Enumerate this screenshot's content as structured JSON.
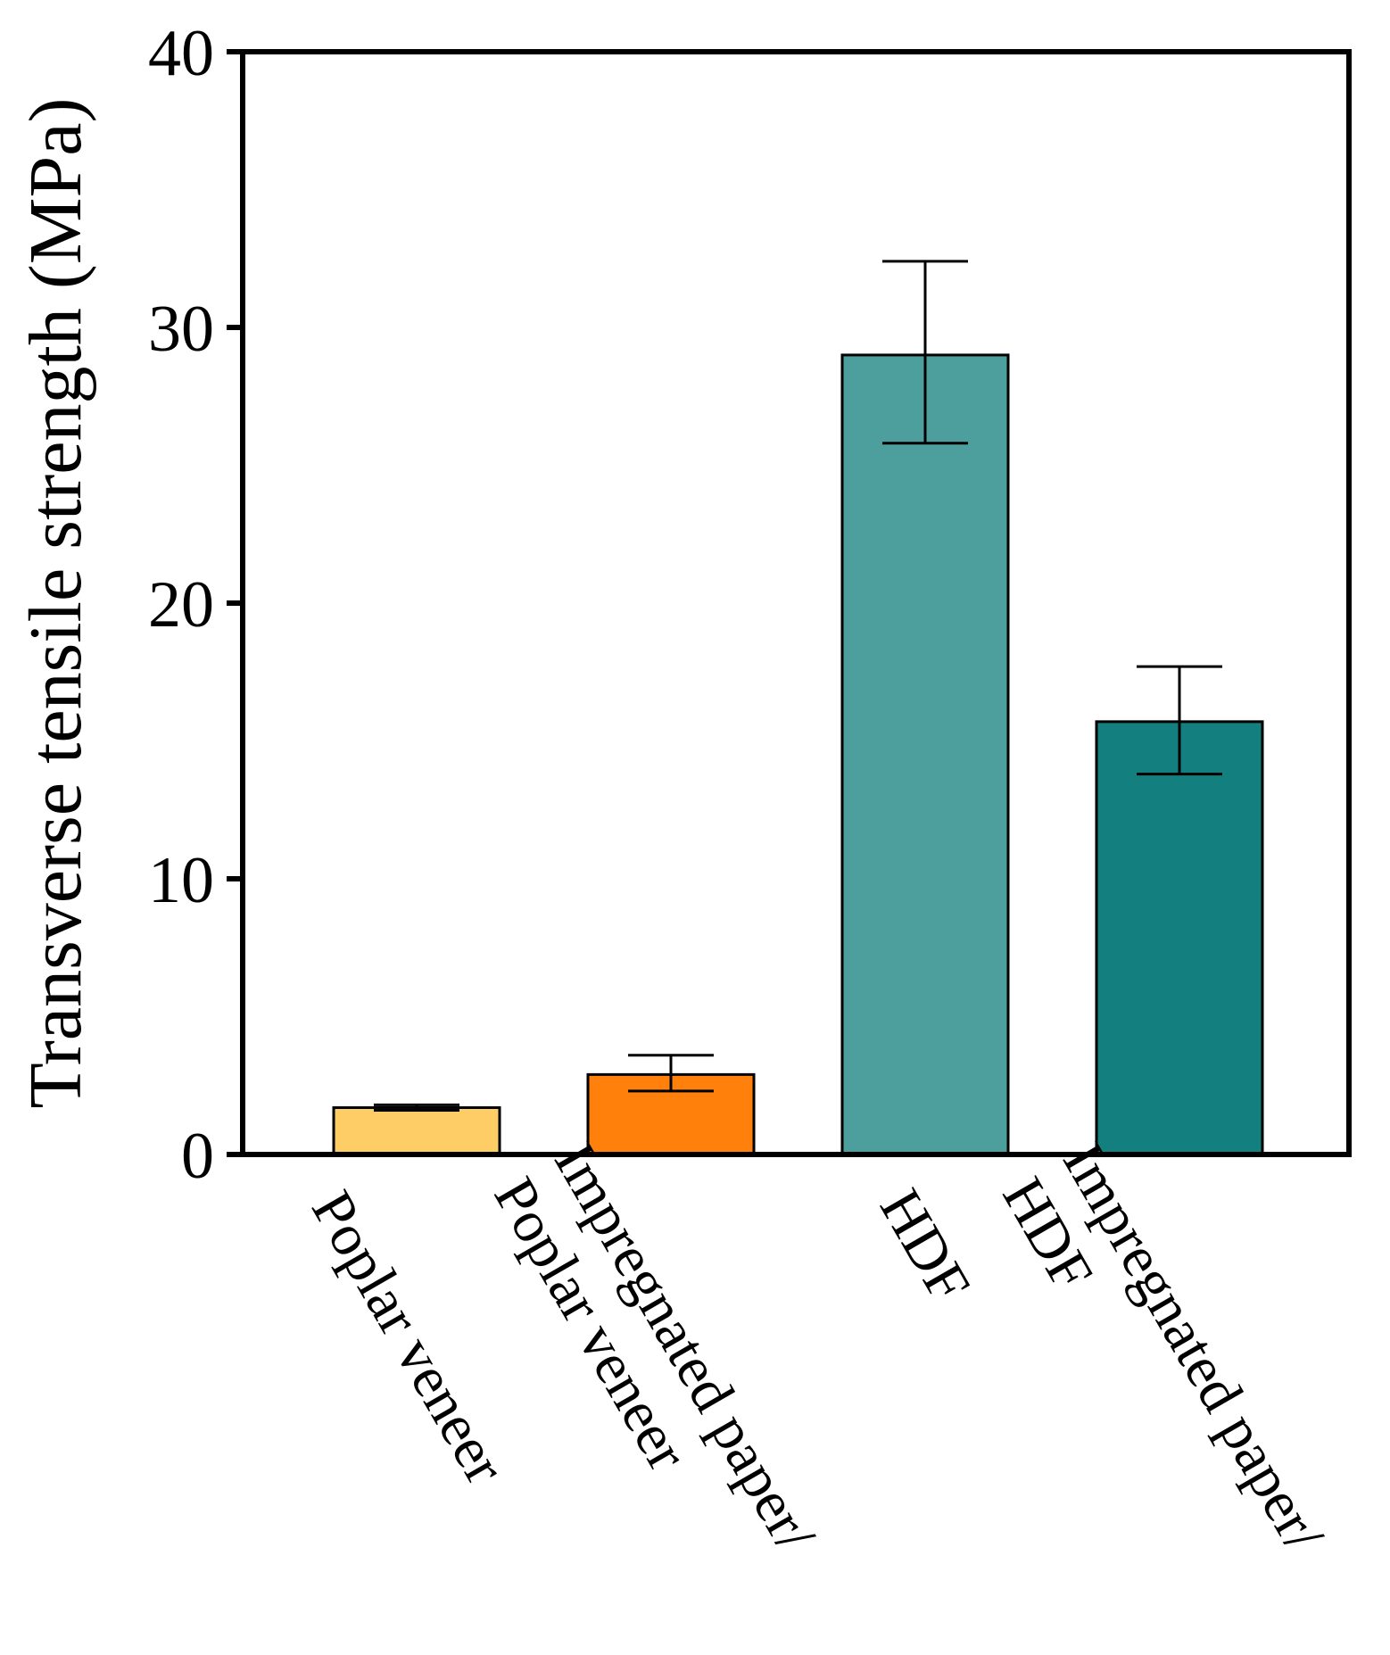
{
  "chart_data": {
    "type": "bar",
    "ylabel": "Transverse tensile strength (MPa)",
    "xlabel": "",
    "ylim": [
      0,
      40
    ],
    "yticks": [
      0,
      10,
      20,
      30,
      40
    ],
    "grid": false,
    "legend": "none",
    "categories": [
      {
        "lines": [
          "Poplar veneer"
        ]
      },
      {
        "lines": [
          "Impregnated paper/",
          "Poplar veneer"
        ]
      },
      {
        "lines": [
          "HDF"
        ]
      },
      {
        "lines": [
          "Impregnated paper/",
          "HDF"
        ]
      }
    ],
    "values": [
      1.7,
      2.9,
      29.0,
      15.7
    ],
    "error": [
      {
        "low": 1.6,
        "high": 1.8
      },
      {
        "low": 2.3,
        "high": 3.6
      },
      {
        "low": 25.8,
        "high": 32.4
      },
      {
        "low": 13.8,
        "high": 17.7
      }
    ],
    "colors": [
      "#FFCD66",
      "#FF800B",
      "#4D9F9E",
      "#137F7E"
    ]
  }
}
